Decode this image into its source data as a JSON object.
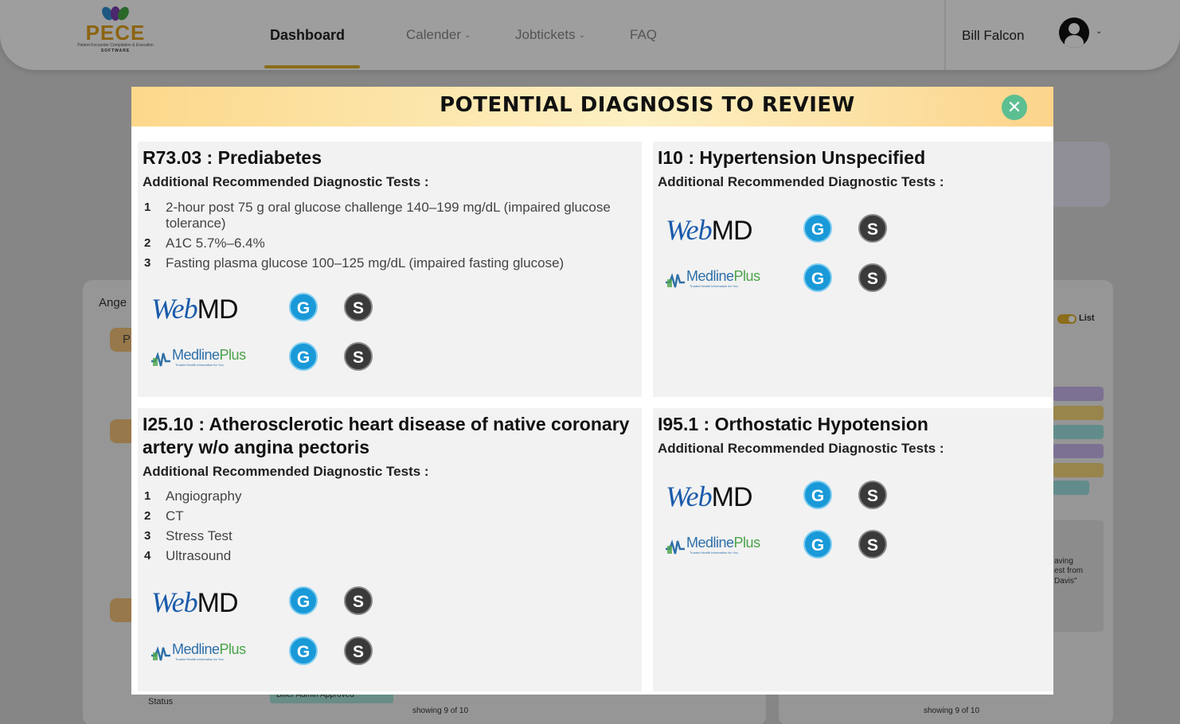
{
  "app": {
    "logo_text": "PECE",
    "logo_tagline": "Patient Encounter Compilation & Execution",
    "logo_software": "SOFTWARE",
    "nav": {
      "dashboard": "Dashboard",
      "calender": "Calender",
      "jobtickets": "Jobtickets",
      "faq": "FAQ"
    },
    "user_name": "Bill Falcon",
    "background": {
      "panel_label": "Ange",
      "chip_text": "P",
      "toggle_label": "List",
      "status_label": "Status",
      "status_value": "Biller Admin Approved",
      "showing_left": "showing 9 of 10",
      "showing_right": "showing 9 of 10",
      "note_line1": "aving",
      "note_line2": "est from",
      "note_line3": "Davis\""
    }
  },
  "modal": {
    "title": "POTENTIAL DIAGNOSIS TO REVIEW",
    "close_icon": "close-icon",
    "subheading": "Additional Recommended Diagnostic Tests :",
    "resources": {
      "webmd": {
        "web": "Web",
        "md": "MD"
      },
      "medline": {
        "text": "Medline",
        "plus": "Plus",
        "tagline": "Trusted Health Information for You"
      },
      "google_label": "G",
      "search_label": "S"
    },
    "cards": [
      {
        "title": "R73.03 : Prediabetes",
        "tests": [
          {
            "num": "1",
            "text": "2-hour post 75 g oral glucose challenge 140–199 mg/dL (impaired glucose tolerance)"
          },
          {
            "num": "2",
            "text": "A1C 5.7%–6.4%"
          },
          {
            "num": "3",
            "text": "Fasting plasma glucose 100–125 mg/dL (impaired fasting glucose)"
          }
        ]
      },
      {
        "title": "I10 : Hypertension Unspecified",
        "tests": []
      },
      {
        "title": "I25.10 : Atherosclerotic heart disease of native coronary artery w/o angina pectoris",
        "tests": [
          {
            "num": "1",
            "text": "Angiography"
          },
          {
            "num": "2",
            "text": "CT"
          },
          {
            "num": "3",
            "text": "Stress Test"
          },
          {
            "num": "4",
            "text": "Ultrasound"
          }
        ]
      },
      {
        "title": "I95.1 : Orthostatic Hypotension",
        "tests": []
      }
    ]
  },
  "colors": {
    "accent": "#e0b02c",
    "header_gradient_start": "#fcd88b",
    "close_button": "#5cbf91",
    "google_button": "#1a99d8",
    "search_button": "#3a3a3a",
    "webmd_blue": "#1a5bab",
    "medline_blue": "#2e6fa8",
    "medline_green": "#4aa34a"
  }
}
